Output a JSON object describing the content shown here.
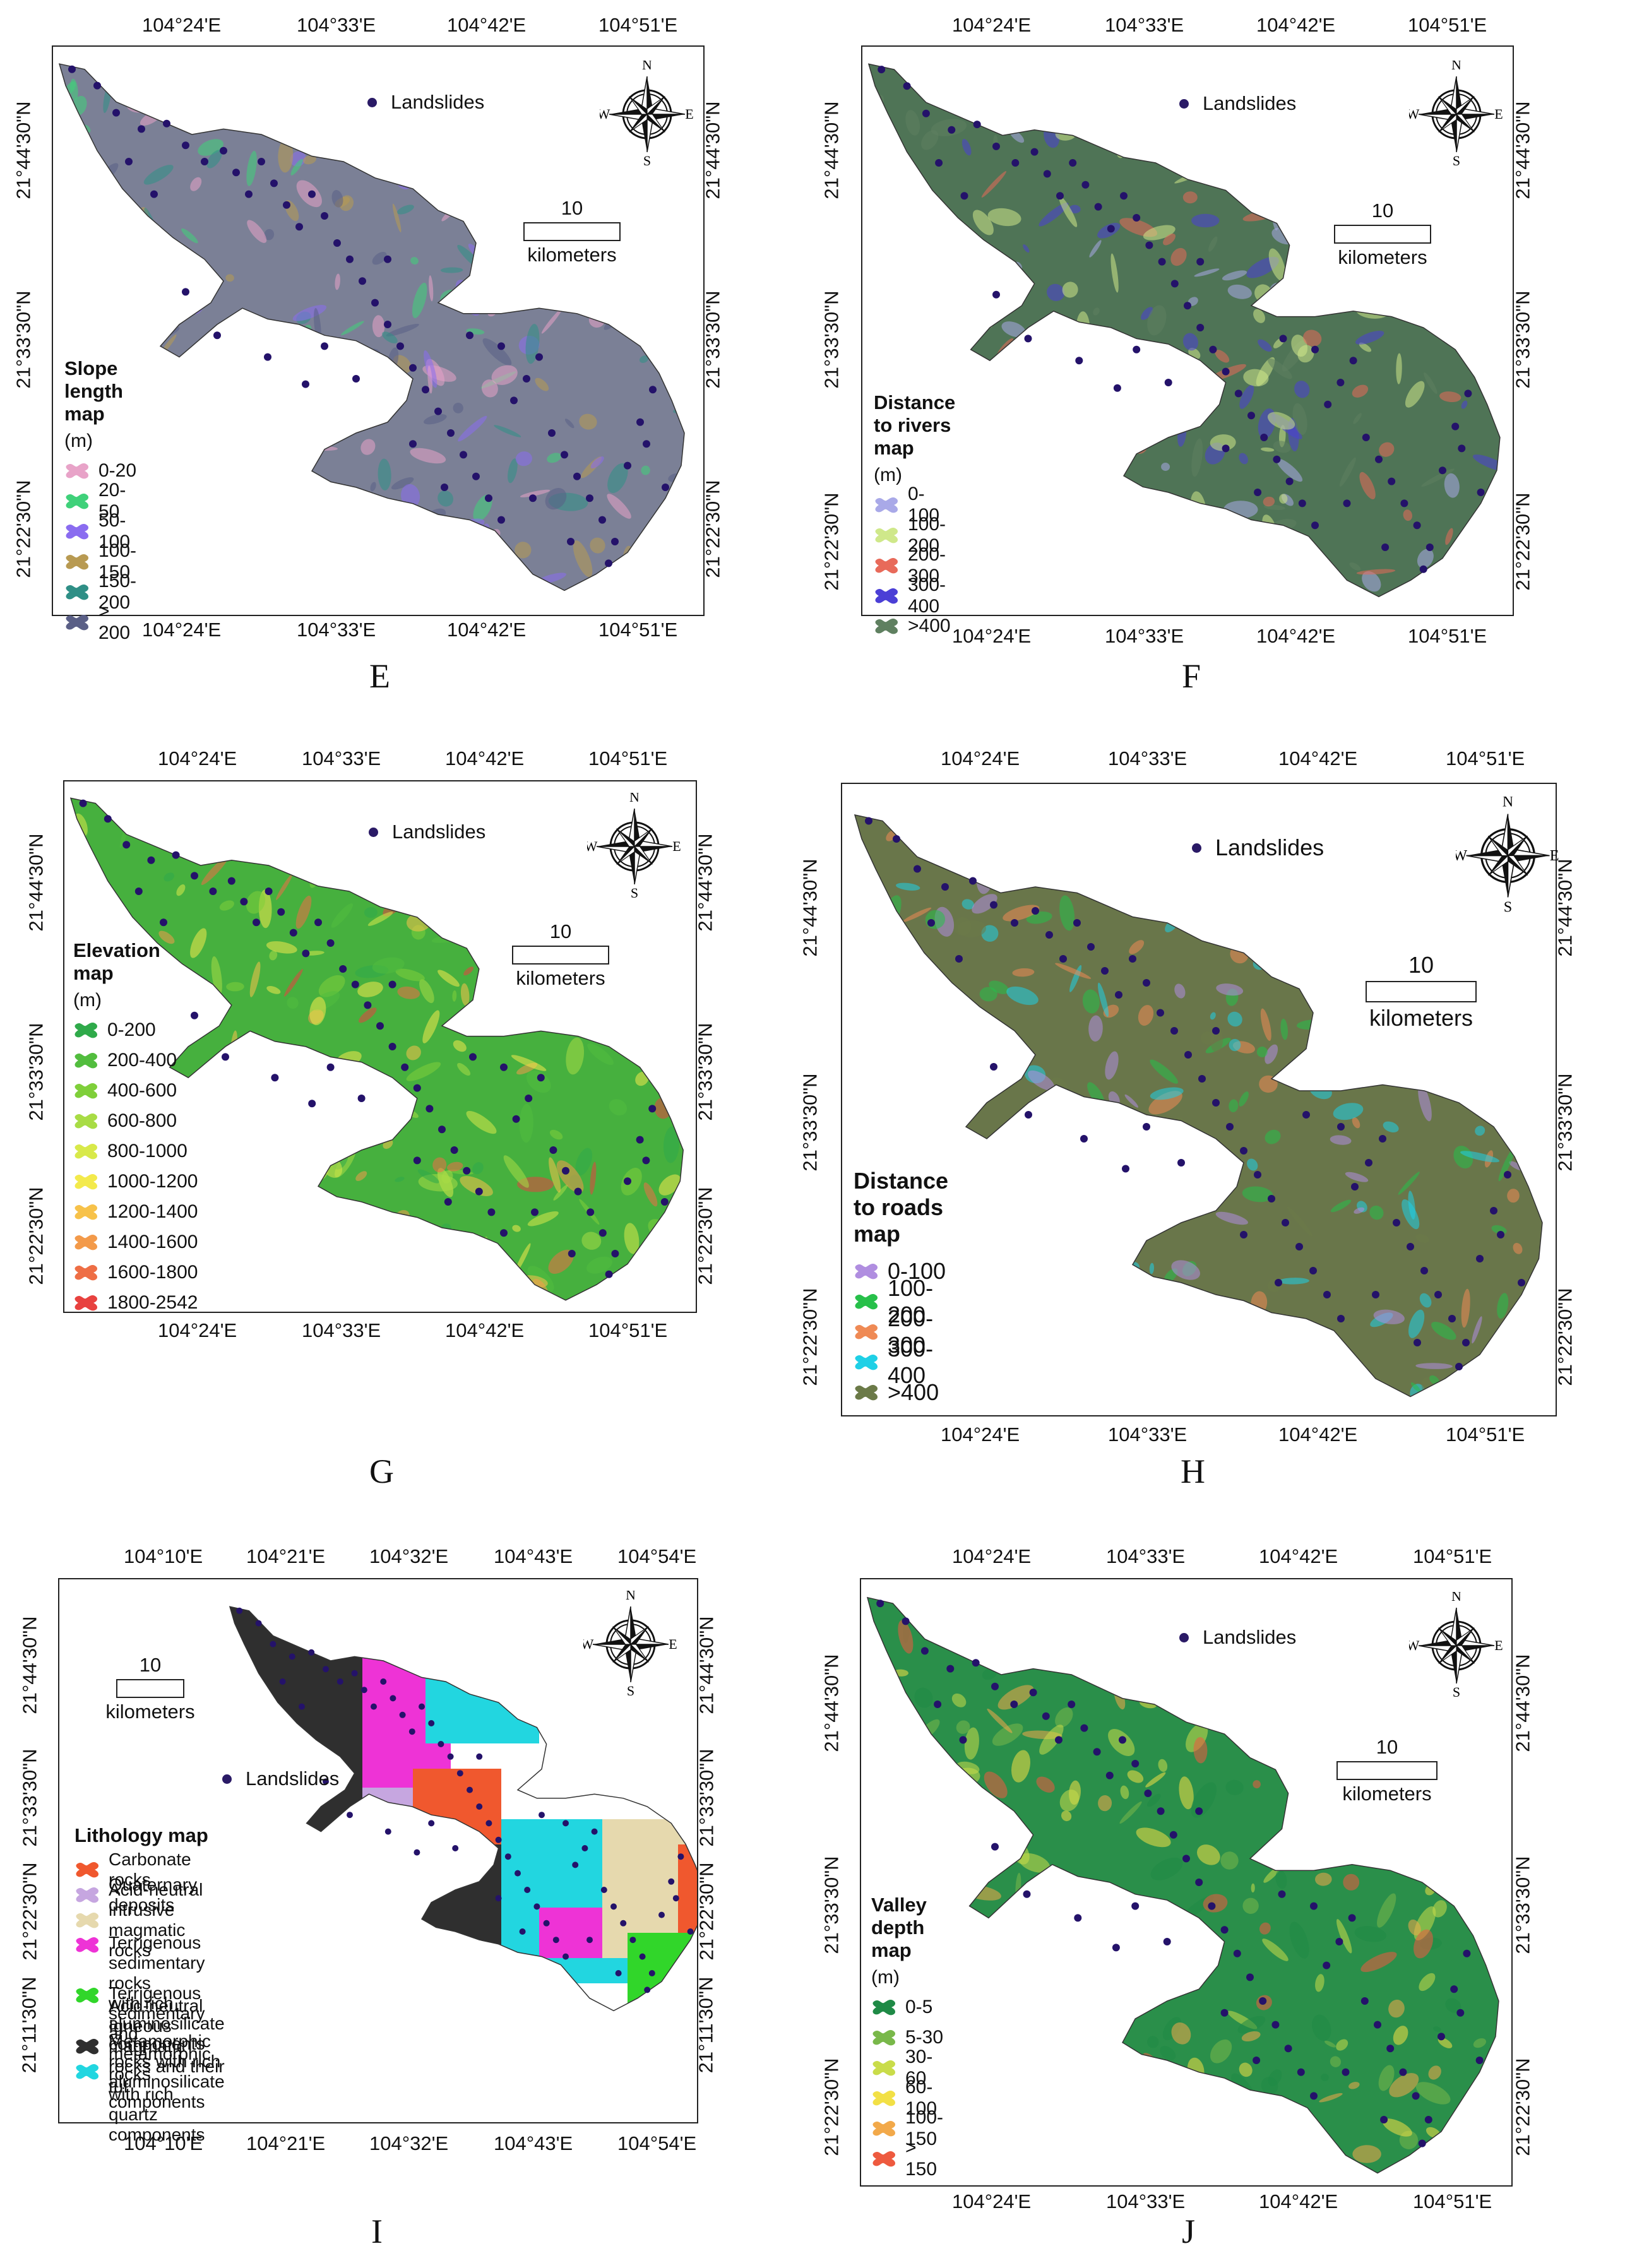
{
  "coords_lon_a": [
    "104°24'E",
    "104°33'E",
    "104°42'E",
    "104°51'E"
  ],
  "coords_lat_a": [
    "21°44'30\"N",
    "21°33'30\"N",
    "21°22'30\"N"
  ],
  "coords_lon_i": [
    "104°10'E",
    "104°21'E",
    "104°32'E",
    "104°43'E",
    "104°54'E"
  ],
  "coords_lat_i": [
    "21°44'30\"N",
    "21°33'30\"N",
    "21°22'30\"N",
    "21°11'30\"N"
  ],
  "landslides_label": "Landslides",
  "scale": {
    "value": "10",
    "unit": "kilometers"
  },
  "compass": {
    "n": "N",
    "s": "S",
    "e": "E",
    "w": "W"
  },
  "panels": {
    "E": {
      "label": "E",
      "legend_title": "Slope length map",
      "unit": "(m)",
      "classes": [
        "0-20",
        "20-50",
        "50-100",
        "100-150",
        "150-200",
        "> 200"
      ],
      "colors": [
        "#e8a3c8",
        "#3fd17a",
        "#8a6cf0",
        "#b89a52",
        "#2f8f86",
        "#5a5f86"
      ],
      "base_color": "#7b8096"
    },
    "F": {
      "label": "F",
      "legend_title": "Distance to rivers map",
      "unit": "(m)",
      "classes": [
        "0-100",
        "100-200",
        "200-300",
        "300-400",
        ">400"
      ],
      "colors": [
        "#a9a9e8",
        "#cfe88a",
        "#e86a5a",
        "#4b3fd6",
        "#5f8060"
      ],
      "base_color": "#4f7456"
    },
    "G": {
      "label": "G",
      "legend_title": "Elevation map",
      "unit": "(m)",
      "classes": [
        "0-200",
        "200-400",
        "400-600",
        "600-800",
        "800-1000",
        "1000-1200",
        "1200-1400",
        "1400-1600",
        "1600-1800",
        "1800-2542"
      ],
      "colors": [
        "#2faa4a",
        "#52bd3e",
        "#7fcf3a",
        "#a8dc45",
        "#d8e94a",
        "#f3ea4c",
        "#f7c24a",
        "#f39a4a",
        "#ee6e45",
        "#e8423f"
      ],
      "base_color": "#46b03e"
    },
    "H": {
      "label": "H",
      "legend_title": "Distance to roads map",
      "unit": "",
      "classes": [
        "0-100",
        "100-200",
        "200-300",
        "300-400",
        ">400"
      ],
      "colors": [
        "#b08ee0",
        "#27c04a",
        "#ef8a55",
        "#1fd0e6",
        "#6b7a48"
      ],
      "base_color": "#69764a"
    },
    "I": {
      "label": "I",
      "legend_title": "Lithology map",
      "unit": "",
      "classes": [
        "Carbonate rocks",
        "Quaternary deposits",
        "Acid-neutral intrusive magmatic rocks",
        "Terrigenous sedimentary rocks",
        "with rich aluminosilicate components",
        "Terrigenous sedimentary and metamorphic rocks",
        "with rich quartz components",
        "Acid-neutral Igneous magmatic rocks and their tuf",
        "Metamorphic rocks with rich aluminosilicate components"
      ],
      "colors": [
        "#f0582e",
        "#c6a6e0",
        "#e6d9ae",
        "#ee33d6",
        "#31d62a",
        "#2f2f2f",
        "#22d6e0"
      ]
    },
    "J": {
      "label": "J",
      "legend_title": "Valley depth map",
      "unit": "(m)",
      "classes": [
        "0-5",
        "5-30",
        "30-60",
        "60-100",
        "100-150",
        "> 150"
      ],
      "colors": [
        "#1f8a46",
        "#79b84a",
        "#c9dc4a",
        "#f2e046",
        "#f2a94a",
        "#ee5a3f"
      ],
      "base_color": "#2a8f4a"
    }
  }
}
